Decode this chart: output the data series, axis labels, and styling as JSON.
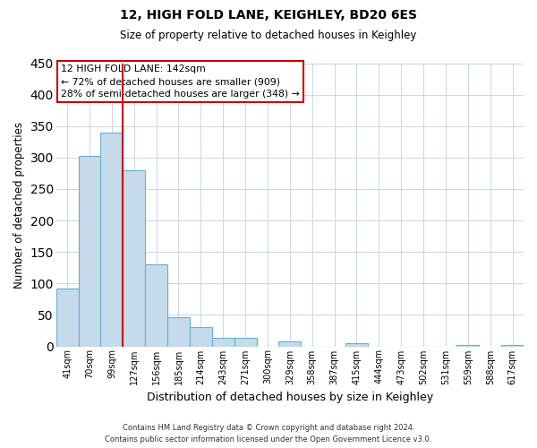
{
  "title": "12, HIGH FOLD LANE, KEIGHLEY, BD20 6ES",
  "subtitle": "Size of property relative to detached houses in Keighley",
  "xlabel": "Distribution of detached houses by size in Keighley",
  "ylabel": "Number of detached properties",
  "bar_labels": [
    "41sqm",
    "70sqm",
    "99sqm",
    "127sqm",
    "156sqm",
    "185sqm",
    "214sqm",
    "243sqm",
    "271sqm",
    "300sqm",
    "329sqm",
    "358sqm",
    "387sqm",
    "415sqm",
    "444sqm",
    "473sqm",
    "502sqm",
    "531sqm",
    "559sqm",
    "588sqm",
    "617sqm"
  ],
  "bar_values": [
    92,
    303,
    340,
    280,
    131,
    46,
    30,
    13,
    14,
    0,
    8,
    0,
    0,
    5,
    0,
    0,
    0,
    0,
    2,
    0,
    2
  ],
  "bar_color": "#c5daea",
  "bar_edge_color": "#6baed6",
  "ylim": [
    0,
    450
  ],
  "yticks": [
    0,
    50,
    100,
    150,
    200,
    250,
    300,
    350,
    400,
    450
  ],
  "property_line_color": "#cc0000",
  "property_line_bar_index": 3,
  "annotation_title": "12 HIGH FOLD LANE: 142sqm",
  "annotation_line1": "← 72% of detached houses are smaller (909)",
  "annotation_line2": "28% of semi-detached houses are larger (348) →",
  "footer_line1": "Contains HM Land Registry data © Crown copyright and database right 2024.",
  "footer_line2": "Contains public sector information licensed under the Open Government Licence v3.0.",
  "background_color": "#ffffff",
  "grid_color": "#c8d8e8"
}
